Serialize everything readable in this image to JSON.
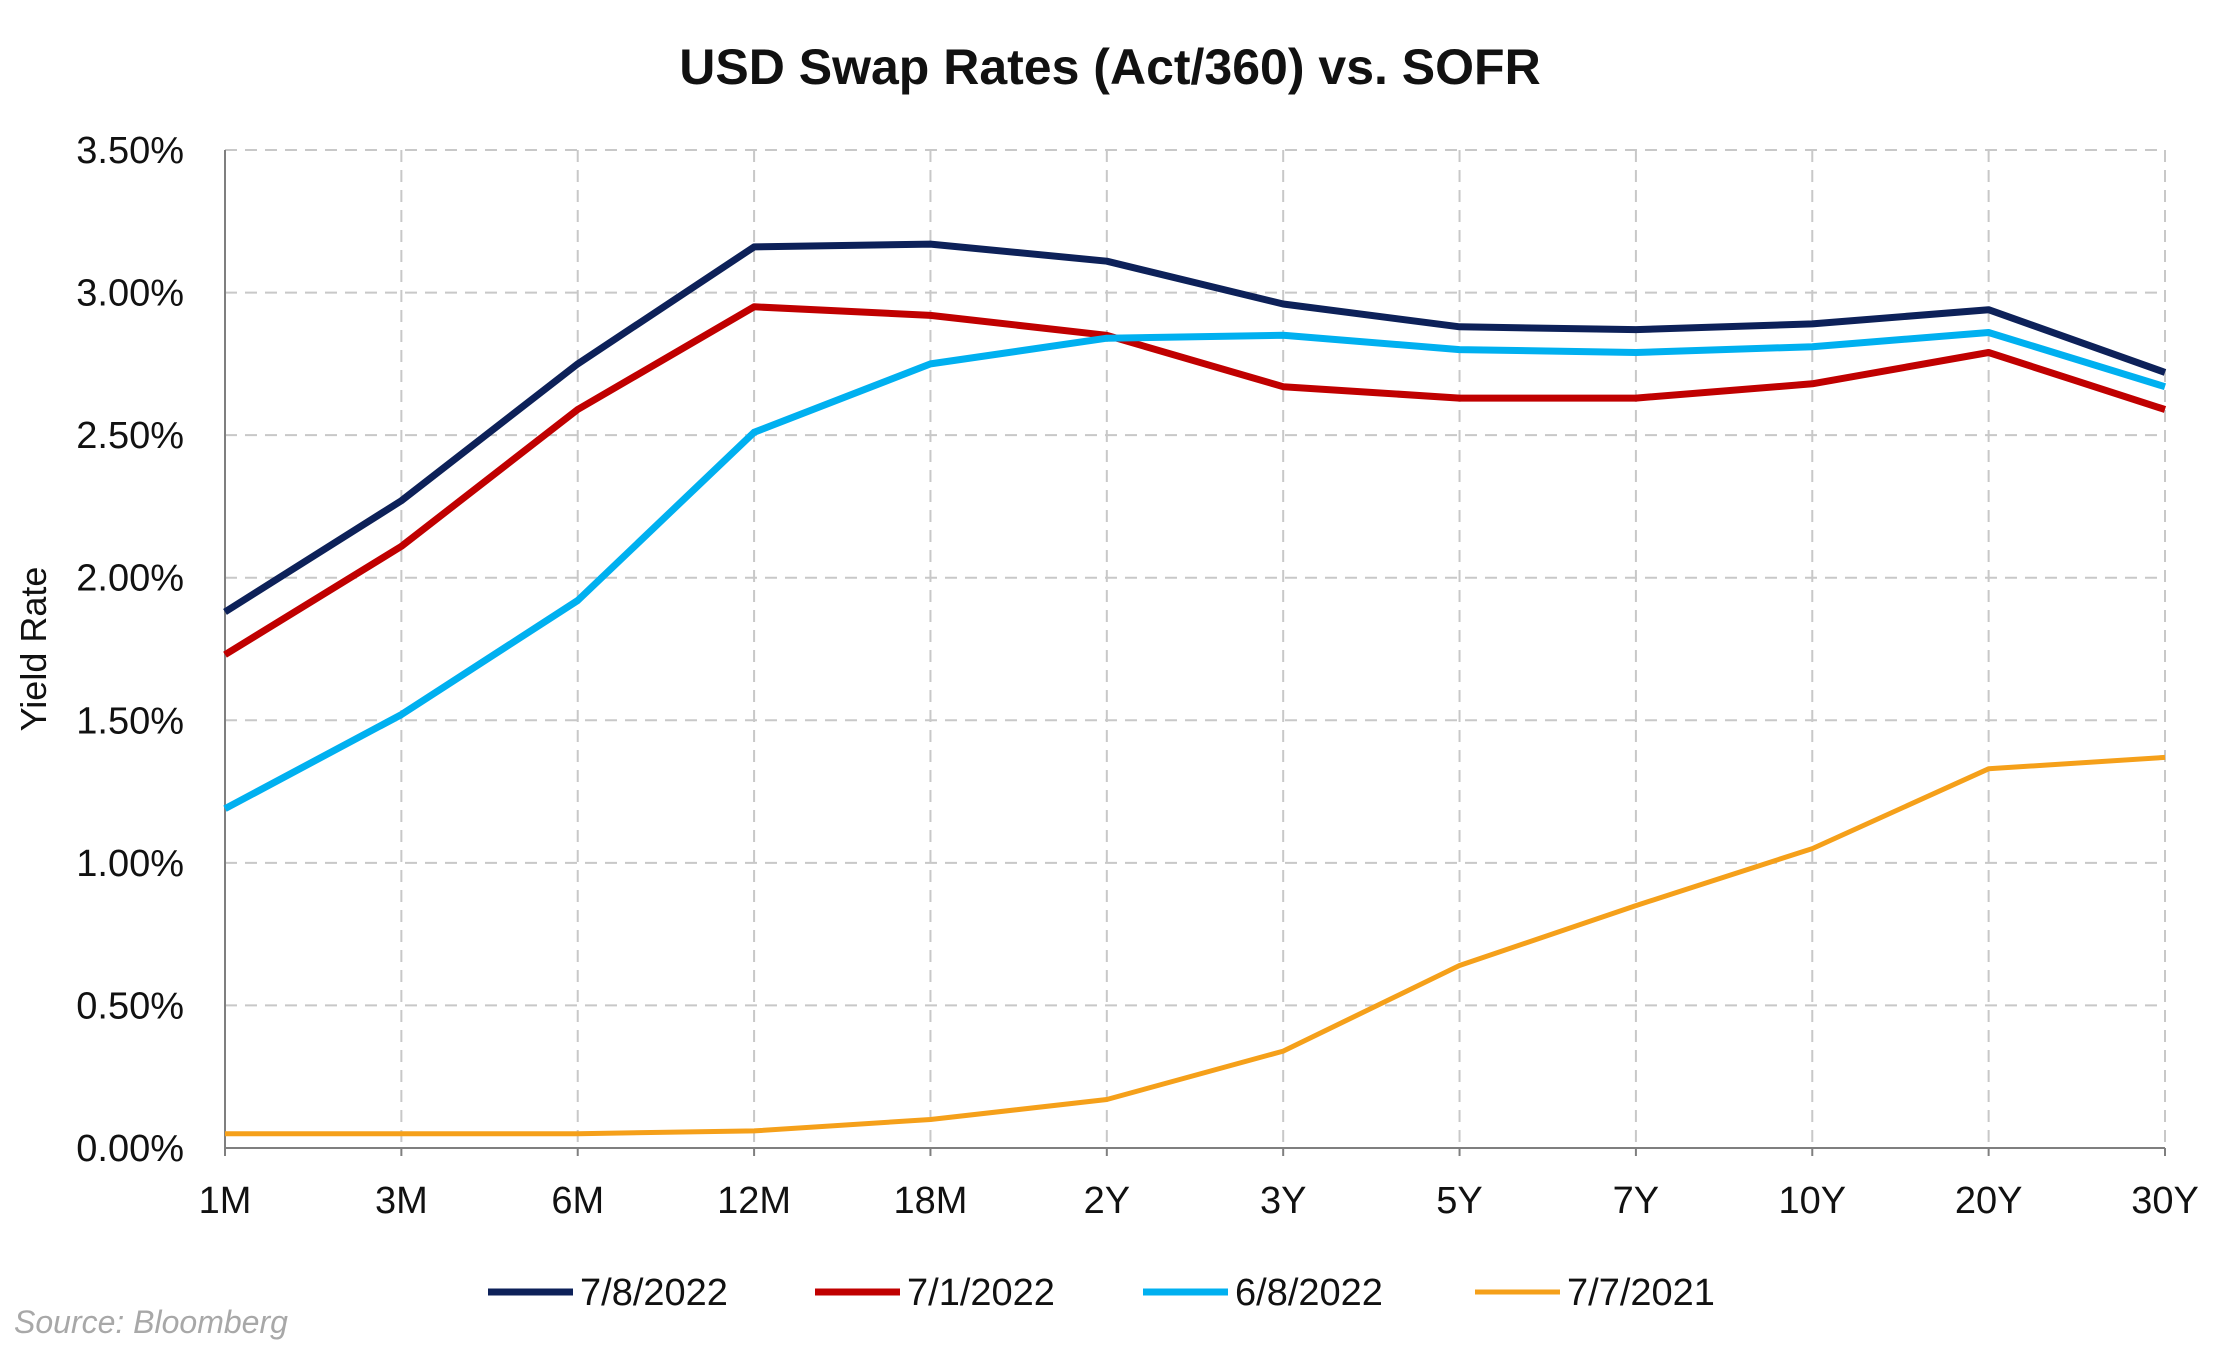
{
  "chart_data": {
    "type": "line",
    "title": "USD Swap Rates (Act/360) vs. SOFR",
    "xlabel": "",
    "ylabel": "Yield Rate",
    "categories": [
      "1M",
      "3M",
      "6M",
      "12M",
      "18M",
      "2Y",
      "3Y",
      "5Y",
      "7Y",
      "10Y",
      "20Y",
      "30Y"
    ],
    "ylim": [
      0,
      3.5
    ],
    "yticks": [
      0,
      0.5,
      1.0,
      1.5,
      2.0,
      2.5,
      3.0,
      3.5
    ],
    "ytick_labels": [
      "0.00%",
      "0.50%",
      "1.00%",
      "1.50%",
      "2.00%",
      "2.50%",
      "3.00%",
      "3.50%"
    ],
    "grid": true,
    "legend_position": "bottom",
    "series": [
      {
        "name": "7/8/2022",
        "color": "#0d2159",
        "values": [
          1.88,
          2.27,
          2.75,
          3.16,
          3.17,
          3.11,
          2.96,
          2.88,
          2.87,
          2.89,
          2.94,
          2.72
        ]
      },
      {
        "name": "7/1/2022",
        "color": "#c00000",
        "values": [
          1.73,
          2.11,
          2.59,
          2.95,
          2.92,
          2.85,
          2.67,
          2.63,
          2.63,
          2.68,
          2.79,
          2.59
        ]
      },
      {
        "name": "6/8/2022",
        "color": "#00b0f0",
        "values": [
          1.19,
          1.52,
          1.92,
          2.51,
          2.75,
          2.84,
          2.85,
          2.8,
          2.79,
          2.81,
          2.86,
          2.67
        ]
      },
      {
        "name": "7/7/2021",
        "color": "#f5a01a",
        "values": [
          0.05,
          0.05,
          0.05,
          0.06,
          0.1,
          0.17,
          0.34,
          0.64,
          0.85,
          1.05,
          1.33,
          1.37
        ]
      }
    ],
    "source": "Source: Bloomberg"
  }
}
